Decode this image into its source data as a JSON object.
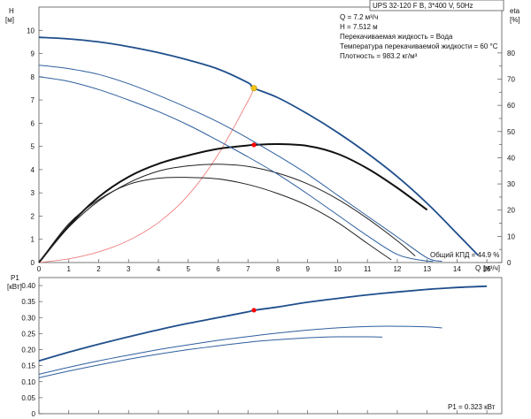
{
  "chart_data": [
    {
      "type": "line",
      "name": "head-and-efficiency",
      "title": "UPS 32-120 F B, 3*400 V, 50Hz",
      "ylabel_left": "H",
      "ylabel_left_unit": "[м]",
      "ylabel_right": "eta",
      "ylabel_right_unit": "[%]",
      "xlabel": "Q",
      "xlabel_unit": "[м³/ч]",
      "xlim": [
        0,
        15.5
      ],
      "ylim_left": [
        0,
        11
      ],
      "ylim_right": [
        0,
        97.5
      ],
      "x_ticks": [
        0,
        1,
        2,
        3,
        4,
        5,
        6,
        7,
        8,
        9,
        10,
        11,
        12,
        13,
        14,
        15
      ],
      "y_left_ticks": [
        0,
        1,
        2,
        3,
        4,
        5,
        6,
        7,
        8,
        9,
        10
      ],
      "y_right_ticks": [
        0,
        5,
        10,
        15,
        20,
        25,
        30,
        35,
        40,
        45,
        50,
        55,
        60,
        65,
        70,
        75,
        80
      ],
      "y_right_tick_labels": [
        0,
        10,
        20,
        30,
        40,
        50,
        60,
        70,
        80
      ],
      "info_lines": [
        "Q = 7.2 м³/ч",
        "H = 7.512 м",
        "Перекачиваемая жидкость = Вода",
        "Температура перекачиваемой жидкости = 60 °C",
        "Плотность = 983.2 кг/м³"
      ],
      "efficiency_note": "Общий КПД = 44.9 %",
      "head_curves": [
        {
          "speed": 3,
          "color": "#1f4e8c",
          "width": 1.8,
          "x": [
            0,
            1,
            2,
            3,
            4,
            5,
            6,
            7,
            7.2,
            8,
            9,
            10,
            11,
            12,
            13,
            14,
            14.7
          ],
          "y": [
            9.7,
            9.63,
            9.5,
            9.3,
            9.04,
            8.72,
            8.33,
            7.74,
            7.51,
            7.1,
            6.4,
            5.6,
            4.7,
            3.7,
            2.55,
            1.25,
            0.32
          ]
        },
        {
          "speed": 2,
          "color": "#2e5f9e",
          "width": 1.0,
          "x": [
            0,
            1,
            2,
            3,
            4,
            5,
            6,
            7,
            8,
            9,
            10,
            11,
            12,
            13,
            13.5
          ],
          "y": [
            8.5,
            8.35,
            8.1,
            7.7,
            7.2,
            6.65,
            6.05,
            5.35,
            4.6,
            3.8,
            2.9,
            2.0,
            1.1,
            0.2,
            0.05
          ]
        },
        {
          "speed": 1,
          "color": "#2e5f9e",
          "width": 1.0,
          "x": [
            0,
            1,
            2,
            3,
            4,
            5,
            6,
            7,
            8,
            9,
            10,
            11,
            12,
            12.8,
            13.2
          ],
          "y": [
            8.0,
            7.8,
            7.45,
            7.0,
            6.5,
            5.92,
            5.25,
            4.55,
            3.8,
            2.95,
            2.05,
            1.15,
            0.35,
            0.1,
            0.05
          ]
        }
      ],
      "efficiency_curves": [
        {
          "speed": 3,
          "color": "#111111",
          "width": 2.0,
          "x": [
            0,
            1,
            2,
            3,
            4,
            5,
            6,
            7,
            7.2,
            8,
            9,
            10,
            11,
            12,
            13
          ],
          "y": [
            0,
            14.0,
            25.0,
            32.7,
            37.7,
            40.9,
            43.4,
            44.7,
            44.9,
            45.2,
            44.5,
            41.5,
            35.9,
            28.5,
            20.1
          ]
        },
        {
          "speed": 2,
          "color": "#222222",
          "width": 1.0,
          "x": [
            0,
            1,
            2,
            3,
            4,
            5,
            6,
            7,
            8,
            9,
            10,
            11,
            12,
            12.6
          ],
          "y": [
            0,
            13.5,
            23.5,
            30.4,
            34.9,
            36.9,
            37.5,
            36.7,
            34.1,
            30.0,
            24.2,
            16.8,
            8.3,
            2.5
          ]
        },
        {
          "speed": 1,
          "color": "#222222",
          "width": 1.0,
          "x": [
            0,
            1,
            2,
            3,
            4,
            5,
            6,
            7,
            8,
            9,
            10,
            11,
            11.8
          ],
          "y": [
            0,
            14.8,
            24.0,
            29.8,
            32.2,
            32.5,
            31.9,
            29.8,
            26.3,
            21.7,
            15.3,
            7.3,
            1.0
          ]
        }
      ],
      "system_curve": {
        "color": "#f08080",
        "x": [
          0,
          1,
          2,
          3,
          4,
          5,
          6,
          7,
          7.2
        ],
        "y": [
          0,
          0.16,
          0.46,
          0.95,
          1.72,
          2.9,
          4.65,
          6.95,
          7.51
        ]
      },
      "operating_point_head": {
        "x": 7.2,
        "y": 7.51,
        "color": "#f5c518"
      },
      "operating_point_eff": {
        "x": 7.2,
        "y": 44.9,
        "color": "#ff0000"
      }
    },
    {
      "type": "line",
      "name": "power",
      "ylabel": "P1",
      "ylabel_unit": "[кВт]",
      "xlim": [
        0,
        15.5
      ],
      "ylim": [
        0,
        0.425
      ],
      "y_ticks": [
        0,
        0.05,
        0.1,
        0.15,
        0.2,
        0.25,
        0.3,
        0.35,
        0.4
      ],
      "y_tick_labels": [
        "0",
        "0.05",
        "0.10",
        "0.15",
        "0.20",
        "0.25",
        "0.30",
        "0.35",
        "0.40"
      ],
      "power_note": "P1 = 0.323 кВт",
      "power_curves": [
        {
          "speed": 3,
          "color": "#1f4e8c",
          "width": 1.8,
          "x": [
            0,
            1,
            2,
            3,
            4,
            5,
            6,
            7,
            7.2,
            8,
            9,
            10,
            11,
            12,
            13,
            14,
            15
          ],
          "y": [
            0.165,
            0.192,
            0.217,
            0.24,
            0.262,
            0.282,
            0.3,
            0.318,
            0.323,
            0.333,
            0.348,
            0.36,
            0.371,
            0.38,
            0.388,
            0.394,
            0.398
          ]
        },
        {
          "speed": 2,
          "color": "#2e5f9e",
          "width": 1.0,
          "x": [
            0,
            1,
            2,
            3,
            4,
            5,
            6,
            7,
            8,
            9,
            10,
            11,
            12,
            13,
            13.5
          ],
          "y": [
            0.123,
            0.145,
            0.165,
            0.183,
            0.2,
            0.215,
            0.229,
            0.241,
            0.252,
            0.261,
            0.268,
            0.272,
            0.273,
            0.271,
            0.268
          ]
        },
        {
          "speed": 1,
          "color": "#2e5f9e",
          "width": 1.0,
          "x": [
            0,
            1,
            2,
            3,
            4,
            5,
            6,
            7,
            8,
            9,
            10,
            11,
            11.5
          ],
          "y": [
            0.112,
            0.133,
            0.152,
            0.17,
            0.186,
            0.2,
            0.212,
            0.223,
            0.231,
            0.237,
            0.24,
            0.24,
            0.239
          ]
        }
      ],
      "operating_point": {
        "x": 7.2,
        "y": 0.323,
        "color": "#ff0000"
      }
    }
  ]
}
